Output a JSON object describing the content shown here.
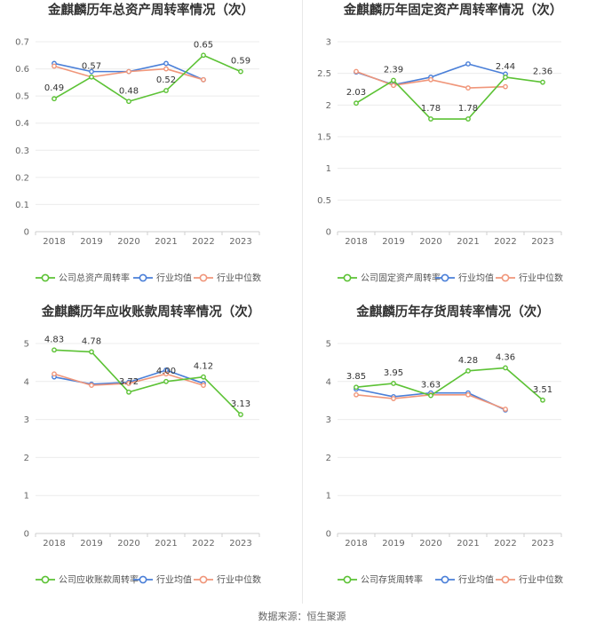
{
  "colors": {
    "company": "#5cc235",
    "industry_avg": "#4a7fd8",
    "industry_median": "#f0967a"
  },
  "source_label": "数据来源：恒生聚源",
  "chart_data": [
    {
      "type": "line",
      "title": "金麒麟历年总资产周转率情况（次）",
      "categories": [
        "2018",
        "2019",
        "2020",
        "2021",
        "2022",
        "2023"
      ],
      "ylim": [
        0,
        0.7
      ],
      "yticks": [
        "0",
        "0.1",
        "0.2",
        "0.3",
        "0.4",
        "0.5",
        "0.6",
        "0.7"
      ],
      "series": [
        {
          "name": "公司总资产周转率",
          "key": "company",
          "values": [
            0.49,
            0.57,
            0.48,
            0.52,
            0.65,
            0.59
          ],
          "labels": [
            "0.49",
            "0.57",
            "0.48",
            "0.52",
            "0.65",
            "0.59"
          ]
        },
        {
          "name": "行业均值",
          "key": "industry_avg",
          "values": [
            0.62,
            0.59,
            0.59,
            0.62,
            0.56,
            null
          ]
        },
        {
          "name": "行业中位数",
          "key": "industry_median",
          "values": [
            0.61,
            0.57,
            0.59,
            0.6,
            0.56,
            null
          ]
        }
      ]
    },
    {
      "type": "line",
      "title": "金麒麟历年固定资产周转率情况（次）",
      "categories": [
        "2018",
        "2019",
        "2020",
        "2021",
        "2022",
        "2023"
      ],
      "ylim": [
        0,
        3
      ],
      "yticks": [
        "0",
        "0.5",
        "1",
        "1.5",
        "2",
        "2.5",
        "3"
      ],
      "series": [
        {
          "name": "公司固定资产周转率",
          "key": "company",
          "values": [
            2.03,
            2.39,
            1.78,
            1.78,
            2.44,
            2.36
          ],
          "labels": [
            "2.03",
            "2.39",
            "1.78",
            "1.78",
            "2.44",
            "2.36"
          ]
        },
        {
          "name": "行业均值",
          "key": "industry_avg",
          "values": [
            2.52,
            2.32,
            2.44,
            2.65,
            2.49,
            null
          ]
        },
        {
          "name": "行业中位数",
          "key": "industry_median",
          "values": [
            2.53,
            2.31,
            2.4,
            2.27,
            2.29,
            null
          ]
        }
      ]
    },
    {
      "type": "line",
      "title": "金麒麟历年应收账款周转率情况（次）",
      "categories": [
        "2018",
        "2019",
        "2020",
        "2021",
        "2022",
        "2023"
      ],
      "ylim": [
        0,
        5
      ],
      "yticks": [
        "0",
        "1",
        "2",
        "3",
        "4",
        "5"
      ],
      "series": [
        {
          "name": "公司应收账款周转率",
          "key": "company",
          "values": [
            4.83,
            4.78,
            3.72,
            4.0,
            4.12,
            3.13
          ],
          "labels": [
            "4.83",
            "4.78",
            "3.72",
            "4.00",
            "4.12",
            "3.13"
          ]
        },
        {
          "name": "行业均值",
          "key": "industry_avg",
          "values": [
            4.12,
            3.93,
            3.98,
            4.3,
            3.95,
            null
          ]
        },
        {
          "name": "行业中位数",
          "key": "industry_median",
          "values": [
            4.2,
            3.9,
            3.95,
            4.2,
            3.9,
            null
          ]
        }
      ]
    },
    {
      "type": "line",
      "title": "金麒麟历年存货周转率情况（次）",
      "categories": [
        "2018",
        "2019",
        "2020",
        "2021",
        "2022",
        "2023"
      ],
      "ylim": [
        0,
        5
      ],
      "yticks": [
        "0",
        "1",
        "2",
        "3",
        "4",
        "5"
      ],
      "series": [
        {
          "name": "公司存货周转率",
          "key": "company",
          "values": [
            3.85,
            3.95,
            3.63,
            4.28,
            4.36,
            3.51
          ],
          "labels": [
            "3.85",
            "3.95",
            "3.63",
            "4.28",
            "4.36",
            "3.51"
          ]
        },
        {
          "name": "行业均值",
          "key": "industry_avg",
          "values": [
            3.8,
            3.6,
            3.7,
            3.7,
            3.25,
            null
          ]
        },
        {
          "name": "行业中位数",
          "key": "industry_median",
          "values": [
            3.65,
            3.55,
            3.65,
            3.65,
            3.27,
            null
          ]
        }
      ]
    }
  ]
}
